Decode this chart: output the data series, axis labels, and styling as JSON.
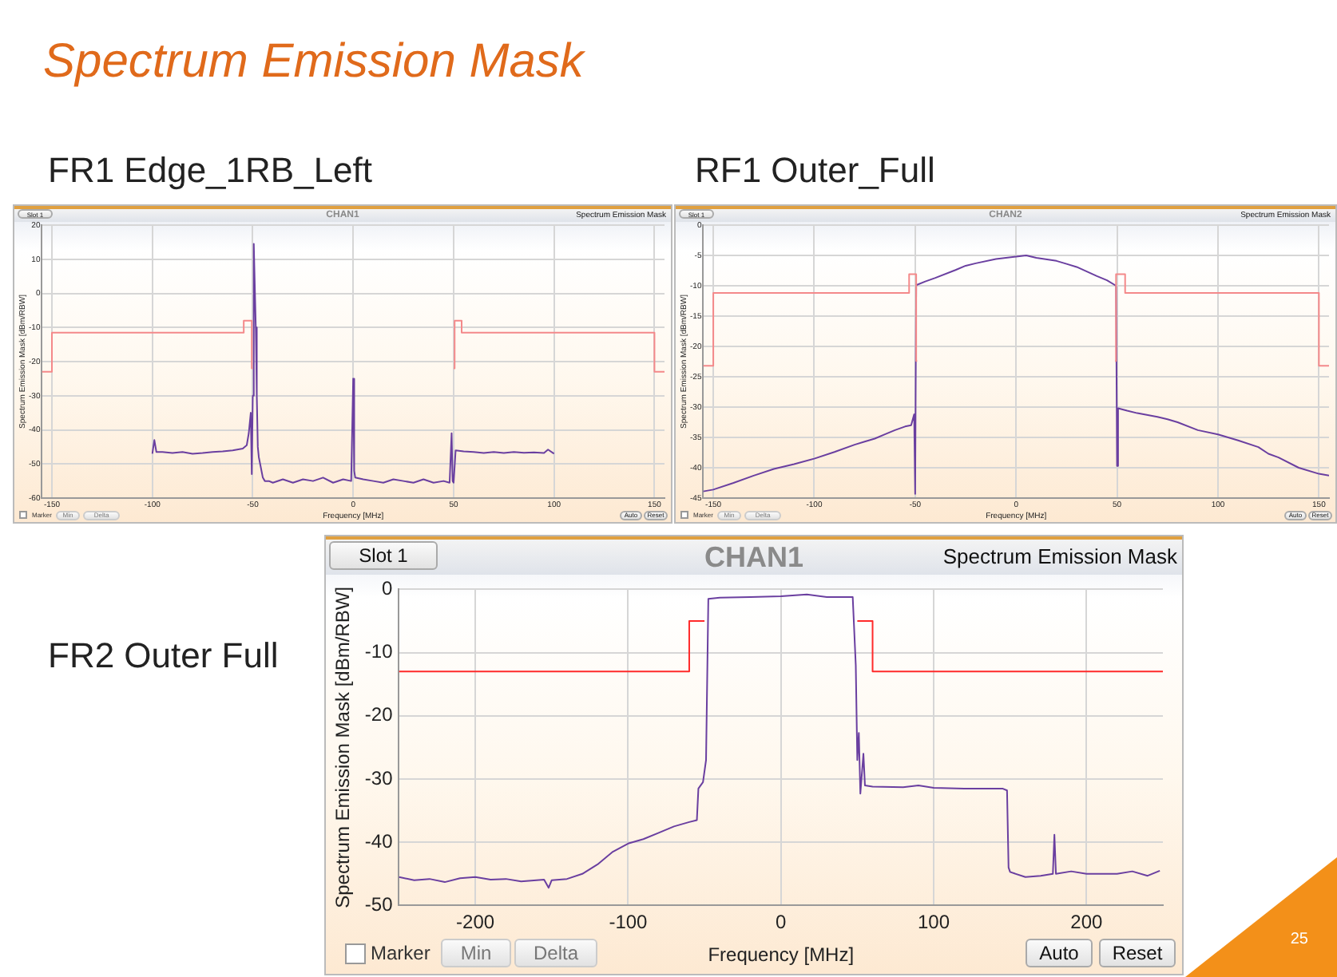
{
  "chart_data": [
    {
      "type": "line",
      "title": "Spectrum Emission Mask",
      "subtitle": "FR1 Edge_1RB_Left",
      "xlabel": "Frequency [MHz]",
      "ylabel": "Spectrum Emission Mask [dBm/RBW]",
      "annotations": [
        "Spectrum Emission Mask",
        "25",
        "Slot 1",
        "CHAN1",
        "Marker",
        "Min",
        "Delta",
        "Auto",
        "Reset"
      ],
      "xlim": [
        -155,
        155
      ],
      "xticks": [
        -150,
        -100,
        -50,
        0,
        50,
        100,
        150
      ],
      "ylim": [
        -60,
        20
      ],
      "yticks": [
        -60,
        -50,
        -40,
        -30,
        -20,
        -10,
        0,
        10,
        20
      ],
      "grid": true,
      "series": [
        {
          "color": "#f4898a",
          "x": [
            -155,
            -150,
            -150,
            -54.5,
            -54.5,
            -50.5,
            -50.5,
            -50,
            0,
            50,
            50.5,
            50.5,
            54,
            54,
            150,
            150,
            155
          ],
          "values": [
            -23,
            -23,
            -11.5,
            -11.5,
            -8,
            -8,
            -22,
            -22,
            null,
            -22,
            -22,
            -8,
            -8,
            -11.5,
            -11.5,
            -23,
            -23
          ]
        },
        {
          "color": "#6a3fa0",
          "x": [
            -100,
            -99,
            -98,
            -95,
            -90,
            -85,
            -80,
            -75,
            -70,
            -65,
            -60,
            -55,
            -53,
            -52,
            -51,
            -50.5,
            -50,
            -49.5,
            -48.5,
            -48,
            -47.5,
            -47,
            -46,
            -45,
            -44,
            -42,
            -40,
            -35,
            -30,
            -25,
            -20,
            -15,
            -10,
            -5,
            -1,
            0,
            0.5,
            1,
            5,
            10,
            15,
            20,
            25,
            30,
            35,
            40,
            45,
            48,
            49,
            49.5,
            50,
            51,
            55,
            60,
            65,
            70,
            75,
            80,
            85,
            90,
            95,
            97,
            100
          ],
          "values": [
            -47,
            -43,
            -46.5,
            -46.5,
            -46.8,
            -46.5,
            -47,
            -46.8,
            -46.5,
            -46.3,
            -46,
            -45.5,
            -44.5,
            -41,
            -35,
            -53,
            -30,
            14.5,
            -10,
            -30,
            -45,
            -48,
            -51,
            -54,
            -55,
            -55,
            -55.5,
            -54.5,
            -55.5,
            -54.5,
            -55,
            -54,
            -55.5,
            -54.5,
            -55,
            -25,
            -52,
            -54,
            -54.5,
            -55,
            -55.5,
            -54.5,
            -55,
            -55.5,
            -54.5,
            -55.5,
            -55,
            -55.5,
            -41,
            -55,
            -55.5,
            -46,
            -46.3,
            -46.5,
            -46.8,
            -46.5,
            -46.8,
            -46.5,
            -46.7,
            -46.6,
            -46.8,
            -45.8,
            -47
          ]
        }
      ]
    },
    {
      "type": "line",
      "title": "Spectrum Emission Mask",
      "subtitle": "RF1 Outer_Full",
      "xlabel": "Frequency [MHz]",
      "ylabel": "Spectrum Emission Mask [dBm/RBW]",
      "annotations": [
        "Slot 1",
        "CHAN2",
        "Marker",
        "Min",
        "Delta",
        "Auto",
        "Reset"
      ],
      "xlim": [
        -155,
        155
      ],
      "xticks": [
        -150,
        -100,
        -50,
        0,
        50,
        100,
        150
      ],
      "ylim": [
        -45,
        0
      ],
      "yticks": [
        -45,
        -40,
        -35,
        -30,
        -25,
        -20,
        -15,
        -10,
        -5,
        0
      ],
      "grid": true,
      "series": [
        {
          "color": "#f4898a",
          "x": [
            -155,
            -150,
            -150,
            -53,
            -53,
            -49.5,
            -49.5,
            -49,
            0,
            49,
            49.5,
            49.5,
            54,
            54,
            150,
            150,
            155
          ],
          "values": [
            -23.2,
            -23.2,
            -11.2,
            -11.2,
            -8.1,
            -8.1,
            -22.4,
            -22.4,
            null,
            -22.4,
            -22.4,
            -8.1,
            -8.1,
            -11.2,
            -11.2,
            -23.2,
            -23.2
          ]
        },
        {
          "color": "#6a3fa0",
          "x": [
            -155,
            -150,
            -140,
            -130,
            -120,
            -110,
            -100,
            -90,
            -80,
            -75,
            -70,
            -65,
            -60,
            -55,
            -52,
            -50.5,
            -50,
            -49.5,
            -45,
            -40,
            -30,
            -25,
            -20,
            -10,
            0,
            5,
            10,
            20,
            25,
            30,
            40,
            45,
            49.5,
            50,
            50.5,
            55,
            60,
            70,
            75,
            80,
            90,
            100,
            110,
            120,
            125,
            130,
            140,
            150,
            155
          ],
          "values": [
            -43.9,
            -43.6,
            -42.5,
            -41.3,
            -40.2,
            -39.4,
            -38.5,
            -37.4,
            -36.2,
            -35.7,
            -35.2,
            -34.5,
            -33.8,
            -33.2,
            -33,
            -31.2,
            -44.3,
            -9.9,
            -9.3,
            -8.7,
            -7.4,
            -6.7,
            -6.3,
            -5.6,
            -5.2,
            -5,
            -5.4,
            -5.9,
            -6.4,
            -6.9,
            -8.4,
            -9.1,
            -10,
            -39.7,
            -30.2,
            -30.6,
            -31,
            -31.6,
            -32,
            -32.5,
            -33.8,
            -34.5,
            -35.5,
            -36.6,
            -37.7,
            -38.3,
            -40,
            -41,
            -41.3
          ]
        }
      ]
    },
    {
      "type": "line",
      "title": "Spectrum Emission Mask",
      "subtitle": "FR2 Outer Full",
      "xlabel": "Frequency [MHz]",
      "ylabel": "Spectrum Emission Mask [dBm/RBW]",
      "annotations": [
        "Slot 1",
        "CHAN1",
        "Marker",
        "Min",
        "Delta",
        "Auto",
        "Reset"
      ],
      "xlim": [
        -250,
        250
      ],
      "xticks": [
        -200,
        -100,
        0,
        100,
        200
      ],
      "ylim": [
        -50,
        0
      ],
      "yticks": [
        -50,
        -40,
        -30,
        -20,
        -10,
        0
      ],
      "grid": true,
      "series": [
        {
          "color": "#ff2a2a",
          "x": [
            -250,
            -60,
            -60,
            -50,
            0,
            50,
            60,
            60,
            250
          ],
          "values": [
            -13,
            -13,
            -5,
            -5,
            null,
            -5,
            -5,
            -13,
            -13
          ]
        },
        {
          "color": "#6a3fa0",
          "x": [
            -250,
            -240,
            -230,
            -220,
            -210,
            -200,
            -190,
            -180,
            -170,
            -160,
            -155,
            -152,
            -150,
            -140,
            -130,
            -120,
            -110,
            -100,
            -90,
            -80,
            -70,
            -60,
            -55,
            -54,
            -51,
            -49,
            -47.5,
            -40,
            -20,
            0,
            17,
            30,
            47,
            49,
            50,
            51,
            52,
            54,
            55,
            60,
            80,
            90,
            100,
            120,
            145,
            148,
            149,
            150,
            160,
            170,
            178,
            179,
            180,
            190,
            200,
            220,
            230,
            240,
            248
          ],
          "values": [
            -45.5,
            -46,
            -45.8,
            -46.3,
            -45.7,
            -45.5,
            -45.9,
            -45.8,
            -46.2,
            -46,
            -45.9,
            -47.2,
            -46,
            -45.8,
            -45,
            -43.5,
            -41.5,
            -40.2,
            -39.5,
            -38.5,
            -37.5,
            -36.8,
            -36.5,
            -31.5,
            -30.5,
            -27,
            -1.5,
            -1.3,
            -1.2,
            -1.1,
            -0.8,
            -1.2,
            -1.2,
            -12,
            -27,
            -22.7,
            -32.3,
            -26,
            -31,
            -31.2,
            -31.3,
            -31,
            -31.4,
            -31.5,
            -31.5,
            -31.8,
            -44,
            -44.7,
            -45.5,
            -45.3,
            -45,
            -38.8,
            -45,
            -44.6,
            -45,
            -45,
            -44.6,
            -45.3,
            -44.5
          ]
        }
      ]
    }
  ]
}
